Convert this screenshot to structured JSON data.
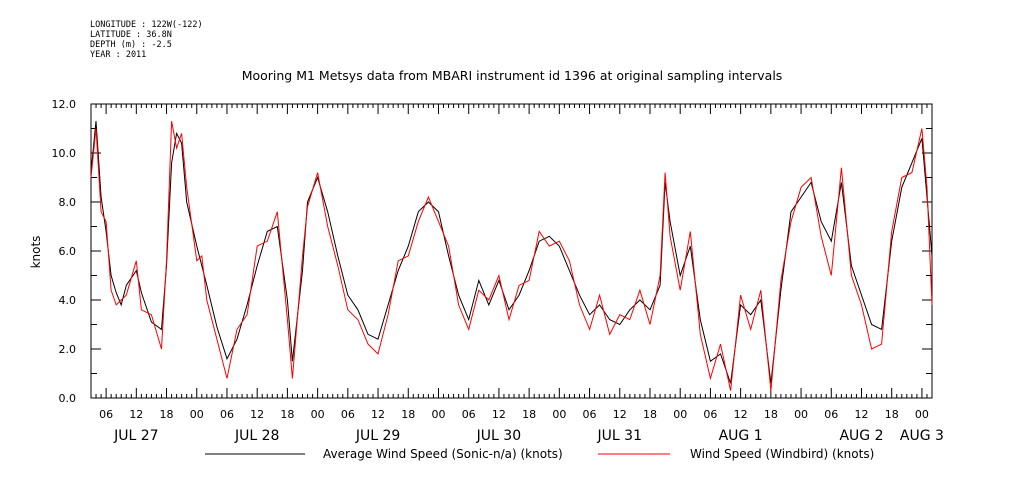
{
  "header": {
    "longitude": "LONGITUDE : 122W(-122)",
    "latitude": "LATITUDE : 36.8N",
    "depth": "DEPTH (m) : -2.5",
    "year": "YEAR : 2011"
  },
  "colors": {
    "series_1": "#000000",
    "series_2": "#ff0000",
    "axis": "#000000"
  },
  "chart_data": {
    "type": "line",
    "title": "Mooring M1 Metsys data from MBARI instrument id 1396 at original sampling intervals",
    "xlabel": "",
    "ylabel": "knots",
    "ylim": [
      0,
      12
    ],
    "xlim": [
      "2011-07-27T03:00",
      "2011-08-03T02:00"
    ],
    "y_ticks": [
      "0.0",
      "2.0",
      "4.0",
      "6.0",
      "8.0",
      "10.0",
      "12.0"
    ],
    "hour_ticks": [
      "06",
      "12",
      "18",
      "00",
      "06",
      "12",
      "18",
      "00",
      "06",
      "12",
      "18",
      "00",
      "06",
      "12",
      "18",
      "00",
      "06",
      "12",
      "18",
      "00",
      "06",
      "12",
      "18",
      "00",
      "06",
      "12",
      "18",
      "00"
    ],
    "day_labels": [
      {
        "label": "JUL 27",
        "at": "2011-07-27T12:00"
      },
      {
        "label": "JUL 28",
        "at": "2011-07-28T12:00"
      },
      {
        "label": "JUL 29",
        "at": "2011-07-29T12:00"
      },
      {
        "label": "JUL 30",
        "at": "2011-07-30T12:00"
      },
      {
        "label": "JUL 31",
        "at": "2011-07-31T12:00"
      },
      {
        "label": "AUG  1",
        "at": "2011-08-01T12:00"
      },
      {
        "label": "AUG  2",
        "at": "2011-08-02T12:00"
      },
      {
        "label": "AUG  3",
        "at": "2011-08-03T00:00"
      }
    ],
    "legend_position": "bottom",
    "series": [
      {
        "name": "Average Wind Speed (Sonic-n/a) (knots)",
        "x": [
          "2011-07-27T03:00",
          "2011-07-27T04:00",
          "2011-07-27T05:00",
          "2011-07-27T06:00",
          "2011-07-27T07:00",
          "2011-07-27T08:00",
          "2011-07-27T09:00",
          "2011-07-27T10:00",
          "2011-07-27T12:00",
          "2011-07-27T13:00",
          "2011-07-27T15:00",
          "2011-07-27T17:00",
          "2011-07-27T18:00",
          "2011-07-27T19:00",
          "2011-07-27T20:00",
          "2011-07-27T21:00",
          "2011-07-27T22:00",
          "2011-07-28T00:00",
          "2011-07-28T01:00",
          "2011-07-28T02:00",
          "2011-07-28T04:00",
          "2011-07-28T06:00",
          "2011-07-28T08:00",
          "2011-07-28T10:00",
          "2011-07-28T12:00",
          "2011-07-28T14:00",
          "2011-07-28T16:00",
          "2011-07-28T18:00",
          "2011-07-28T19:00",
          "2011-07-28T21:00",
          "2011-07-28T22:00",
          "2011-07-29T00:00",
          "2011-07-29T02:00",
          "2011-07-29T04:00",
          "2011-07-29T06:00",
          "2011-07-29T08:00",
          "2011-07-29T10:00",
          "2011-07-29T12:00",
          "2011-07-29T14:00",
          "2011-07-29T16:00",
          "2011-07-29T18:00",
          "2011-07-29T20:00",
          "2011-07-29T22:00",
          "2011-07-30T00:00",
          "2011-07-30T02:00",
          "2011-07-30T04:00",
          "2011-07-30T06:00",
          "2011-07-30T08:00",
          "2011-07-30T10:00",
          "2011-07-30T12:00",
          "2011-07-30T14:00",
          "2011-07-30T16:00",
          "2011-07-30T18:00",
          "2011-07-30T20:00",
          "2011-07-30T22:00",
          "2011-07-31T00:00",
          "2011-07-31T02:00",
          "2011-07-31T04:00",
          "2011-07-31T06:00",
          "2011-07-31T08:00",
          "2011-07-31T10:00",
          "2011-07-31T12:00",
          "2011-07-31T14:00",
          "2011-07-31T16:00",
          "2011-07-31T18:00",
          "2011-07-31T20:00",
          "2011-07-31T21:00",
          "2011-07-31T22:00",
          "2011-08-01T00:00",
          "2011-08-01T02:00",
          "2011-08-01T04:00",
          "2011-08-01T06:00",
          "2011-08-01T08:00",
          "2011-08-01T10:00",
          "2011-08-01T12:00",
          "2011-08-01T14:00",
          "2011-08-01T16:00",
          "2011-08-01T18:00",
          "2011-08-01T20:00",
          "2011-08-01T22:00",
          "2011-08-02T00:00",
          "2011-08-02T02:00",
          "2011-08-02T04:00",
          "2011-08-02T06:00",
          "2011-08-02T08:00",
          "2011-08-02T10:00",
          "2011-08-02T12:00",
          "2011-08-02T14:00",
          "2011-08-02T16:00",
          "2011-08-02T18:00",
          "2011-08-02T20:00",
          "2011-08-02T22:00",
          "2011-08-03T00:00",
          "2011-08-03T01:00",
          "2011-08-03T02:00"
        ],
        "y": [
          9.2,
          11.3,
          8.2,
          6.8,
          5.0,
          4.3,
          3.8,
          4.6,
          5.2,
          4.3,
          3.1,
          2.8,
          5.4,
          9.6,
          10.8,
          10.4,
          8.0,
          6.2,
          5.4,
          4.6,
          2.9,
          1.6,
          2.4,
          3.8,
          5.4,
          6.8,
          7.0,
          4.0,
          1.5,
          5.2,
          8.0,
          9.0,
          7.6,
          5.8,
          4.2,
          3.6,
          2.6,
          2.4,
          3.8,
          5.2,
          6.2,
          7.6,
          8.0,
          7.6,
          5.8,
          4.2,
          3.2,
          4.8,
          3.8,
          4.8,
          3.6,
          4.2,
          5.2,
          6.4,
          6.6,
          6.2,
          5.2,
          4.2,
          3.4,
          3.8,
          3.2,
          3.0,
          3.6,
          4.0,
          3.6,
          4.6,
          8.8,
          7.2,
          5.0,
          6.2,
          3.2,
          1.5,
          1.8,
          0.6,
          3.8,
          3.4,
          4.0,
          0.6,
          4.4,
          7.6,
          8.2,
          8.8,
          7.2,
          6.4,
          8.8,
          5.4,
          4.2,
          3.0,
          2.8,
          6.4,
          8.6,
          9.6,
          10.6,
          8.2,
          5.8
        ]
      },
      {
        "name": "Wind Speed (Windbird) (knots)",
        "x": [
          "2011-07-27T03:00",
          "2011-07-27T04:00",
          "2011-07-27T05:00",
          "2011-07-27T06:00",
          "2011-07-27T07:00",
          "2011-07-27T08:00",
          "2011-07-27T09:00",
          "2011-07-27T10:00",
          "2011-07-27T12:00",
          "2011-07-27T13:00",
          "2011-07-27T15:00",
          "2011-07-27T17:00",
          "2011-07-27T18:00",
          "2011-07-27T19:00",
          "2011-07-27T20:00",
          "2011-07-27T21:00",
          "2011-07-27T22:00",
          "2011-07-28T00:00",
          "2011-07-28T01:00",
          "2011-07-28T02:00",
          "2011-07-28T04:00",
          "2011-07-28T06:00",
          "2011-07-28T08:00",
          "2011-07-28T10:00",
          "2011-07-28T12:00",
          "2011-07-28T14:00",
          "2011-07-28T16:00",
          "2011-07-28T18:00",
          "2011-07-28T19:00",
          "2011-07-28T21:00",
          "2011-07-28T22:00",
          "2011-07-29T00:00",
          "2011-07-29T02:00",
          "2011-07-29T04:00",
          "2011-07-29T06:00",
          "2011-07-29T08:00",
          "2011-07-29T10:00",
          "2011-07-29T12:00",
          "2011-07-29T14:00",
          "2011-07-29T16:00",
          "2011-07-29T18:00",
          "2011-07-29T20:00",
          "2011-07-29T22:00",
          "2011-07-30T00:00",
          "2011-07-30T02:00",
          "2011-07-30T04:00",
          "2011-07-30T06:00",
          "2011-07-30T08:00",
          "2011-07-30T10:00",
          "2011-07-30T12:00",
          "2011-07-30T14:00",
          "2011-07-30T16:00",
          "2011-07-30T18:00",
          "2011-07-30T20:00",
          "2011-07-30T22:00",
          "2011-07-31T00:00",
          "2011-07-31T02:00",
          "2011-07-31T04:00",
          "2011-07-31T06:00",
          "2011-07-31T08:00",
          "2011-07-31T10:00",
          "2011-07-31T12:00",
          "2011-07-31T14:00",
          "2011-07-31T16:00",
          "2011-07-31T18:00",
          "2011-07-31T20:00",
          "2011-07-31T21:00",
          "2011-07-31T22:00",
          "2011-08-01T00:00",
          "2011-08-01T02:00",
          "2011-08-01T04:00",
          "2011-08-01T06:00",
          "2011-08-01T08:00",
          "2011-08-01T10:00",
          "2011-08-01T12:00",
          "2011-08-01T14:00",
          "2011-08-01T16:00",
          "2011-08-01T18:00",
          "2011-08-01T20:00",
          "2011-08-01T22:00",
          "2011-08-02T00:00",
          "2011-08-02T02:00",
          "2011-08-02T04:00",
          "2011-08-02T06:00",
          "2011-08-02T08:00",
          "2011-08-02T10:00",
          "2011-08-02T12:00",
          "2011-08-02T14:00",
          "2011-08-02T16:00",
          "2011-08-02T18:00",
          "2011-08-02T20:00",
          "2011-08-02T22:00",
          "2011-08-03T00:00",
          "2011-08-03T01:00",
          "2011-08-03T02:00"
        ],
        "y": [
          9.0,
          11.0,
          7.6,
          7.2,
          4.4,
          3.8,
          4.0,
          4.2,
          5.6,
          3.6,
          3.4,
          2.0,
          5.6,
          11.3,
          10.2,
          10.8,
          8.6,
          5.6,
          5.8,
          4.0,
          2.4,
          0.8,
          2.8,
          3.4,
          6.2,
          6.4,
          7.6,
          3.2,
          0.8,
          5.8,
          7.8,
          9.2,
          7.0,
          5.4,
          3.6,
          3.2,
          2.2,
          1.8,
          3.4,
          5.6,
          5.8,
          7.2,
          8.2,
          7.2,
          6.2,
          3.8,
          2.8,
          4.4,
          4.0,
          5.0,
          3.2,
          4.6,
          4.8,
          6.8,
          6.2,
          6.4,
          5.6,
          3.8,
          2.8,
          4.2,
          2.6,
          3.4,
          3.2,
          4.4,
          3.0,
          5.0,
          9.2,
          6.6,
          4.4,
          6.8,
          2.6,
          0.8,
          2.2,
          0.3,
          4.2,
          2.8,
          4.4,
          0.3,
          4.8,
          7.2,
          8.6,
          9.0,
          6.6,
          5.0,
          9.4,
          5.0,
          3.8,
          2.0,
          2.2,
          6.8,
          9.0,
          9.2,
          11.0,
          8.6,
          3.8
        ]
      }
    ]
  }
}
